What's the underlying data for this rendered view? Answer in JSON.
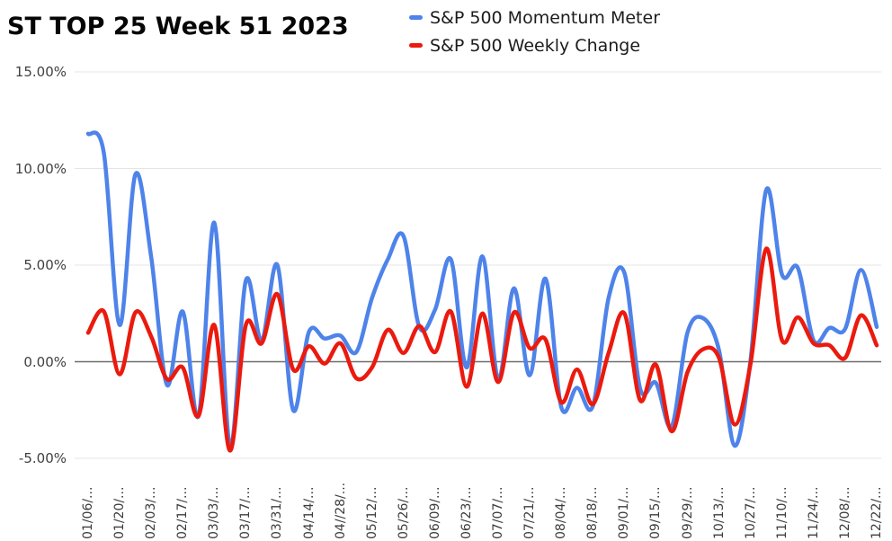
{
  "title": "ST TOP 25 Week 51 2023",
  "legend": [
    {
      "label": "S&P 500 Momentum Meter",
      "color": "#4e83ea"
    },
    {
      "label": "S&P 500 Weekly Change",
      "color": "#eb1a0e"
    }
  ],
  "colors": {
    "background": "#ffffff",
    "gridline": "#e4e4e4",
    "zero_line": "#6e6e6e",
    "title_text": "#060606",
    "axis_text": "#3d3d3d",
    "series_blue": "#4e83ea",
    "series_red": "#eb1a0e"
  },
  "chart_data": {
    "type": "line",
    "title": "ST TOP 25 Week 51 2023",
    "xlabel": "",
    "ylabel": "",
    "ylim": [
      -5,
      15
    ],
    "ytick_step": 5,
    "yticks": [
      "15.00%",
      "10.00%",
      "5.00%",
      "0.00%",
      "-5.00%"
    ],
    "grid": true,
    "legend_position": "top",
    "smooth": true,
    "x_labels": [
      "01/06/...",
      "01/20/...",
      "02/03/...",
      "02/17/...",
      "03/03/...",
      "03/17/...",
      "03/31/...",
      "04/14/...",
      "04//28/...",
      "05/12/...",
      "05/26/...",
      "06/09/...",
      "06/23/...",
      "07/07/...",
      "07/21/...",
      "08/04/...",
      "08/18/...",
      "09/01/...",
      "09/15/...",
      "09/29/...",
      "10/13/...",
      "10/27/...",
      "11/10/...",
      "11/24/...",
      "12/08/...",
      "12/22/..."
    ],
    "points_per_label": 2,
    "units": "percent",
    "series": [
      {
        "name": "S&P 500 Momentum Meter",
        "color": "#4e83ea",
        "values": [
          11.8,
          10.8,
          1.9,
          9.7,
          5.4,
          -1.2,
          2.6,
          -2.8,
          7.2,
          -4.4,
          4.2,
          1.1,
          5.0,
          -2.5,
          1.55,
          1.2,
          1.35,
          0.5,
          3.3,
          5.3,
          6.5,
          1.8,
          2.7,
          5.3,
          -0.3,
          5.45,
          -0.9,
          3.8,
          -0.7,
          4.3,
          -2.35,
          -1.35,
          -2.3,
          3.3,
          4.6,
          -1.4,
          -1.1,
          -3.35,
          1.5,
          2.25,
          0.6,
          -4.35,
          0.1,
          8.9,
          4.5,
          4.85,
          1.1,
          1.75,
          1.7,
          4.75,
          1.8
        ]
      },
      {
        "name": "S&P 500 Weekly Change",
        "color": "#eb1a0e",
        "values": [
          1.5,
          2.6,
          -0.65,
          2.55,
          1.3,
          -0.9,
          -0.3,
          -2.8,
          1.9,
          -4.6,
          1.9,
          0.95,
          3.5,
          -0.4,
          0.8,
          -0.1,
          0.95,
          -0.85,
          -0.3,
          1.65,
          0.45,
          1.85,
          0.5,
          2.6,
          -1.3,
          2.5,
          -1.05,
          2.55,
          0.7,
          1.15,
          -2.1,
          -0.4,
          -2.2,
          0.45,
          2.5,
          -2.0,
          -0.15,
          -3.6,
          -0.55,
          0.65,
          0.2,
          -3.25,
          -0.1,
          5.85,
          1.1,
          2.3,
          0.95,
          0.85,
          0.2,
          2.4,
          0.85
        ]
      }
    ]
  }
}
